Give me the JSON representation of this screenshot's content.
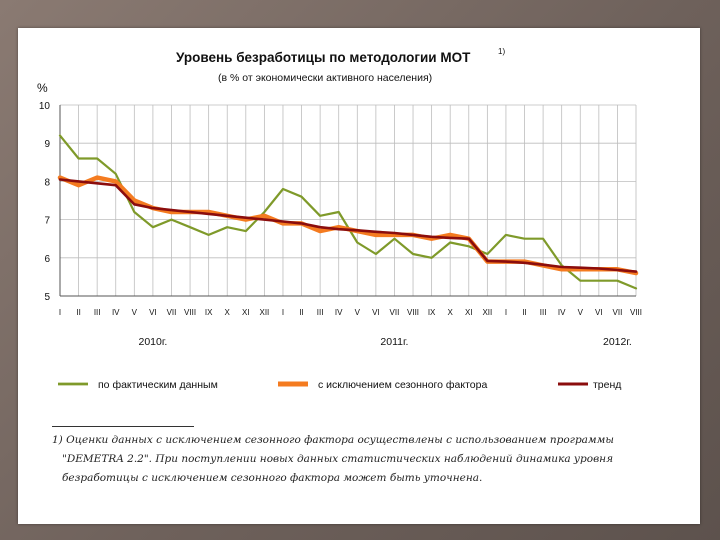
{
  "chart_data": {
    "type": "line",
    "title": "Уровень безработицы по методологии МОТ",
    "title_sup": "1)",
    "subtitle": "(в % от экономически активного населения)",
    "ylabel": "%",
    "ylim": [
      5,
      10
    ],
    "yticks": [
      5,
      6,
      7,
      8,
      9,
      10
    ],
    "grid": true,
    "legend_position": "bottom",
    "month_labels": [
      "I",
      "II",
      "III",
      "IV",
      "V",
      "VI",
      "VII",
      "VIII",
      "IX",
      "X",
      "XI",
      "XII",
      "I",
      "II",
      "III",
      "IV",
      "V",
      "VI",
      "VII",
      "VIII",
      "IX",
      "X",
      "XI",
      "XII",
      "I",
      "II",
      "III",
      "IV",
      "V",
      "VI",
      "VII",
      "VIII"
    ],
    "year_labels": [
      {
        "text": "2010г.",
        "index": 5
      },
      {
        "text": "2011г.",
        "index": 18
      },
      {
        "text": "2012г.",
        "index": 30
      }
    ],
    "series": [
      {
        "name": "по фактическим данным",
        "color": "#7f9a2a",
        "values": [
          9.2,
          8.6,
          8.6,
          8.2,
          7.2,
          6.8,
          7.0,
          6.8,
          6.6,
          6.8,
          6.7,
          7.2,
          7.8,
          7.6,
          7.1,
          7.2,
          6.4,
          6.1,
          6.5,
          6.1,
          6.0,
          6.4,
          6.3,
          6.1,
          6.6,
          6.5,
          6.5,
          5.8,
          5.4,
          5.4,
          5.4,
          5.2
        ]
      },
      {
        "name": "с исключением сезонного фактора",
        "color": "#f47b20",
        "values": [
          8.1,
          7.9,
          8.1,
          8.0,
          7.5,
          7.3,
          7.2,
          7.2,
          7.2,
          7.1,
          7.0,
          7.1,
          6.9,
          6.9,
          6.7,
          6.8,
          6.7,
          6.6,
          6.6,
          6.6,
          6.5,
          6.6,
          6.5,
          5.9,
          5.9,
          5.9,
          5.8,
          5.7,
          5.7,
          5.7,
          5.7,
          5.6
        ]
      },
      {
        "name": "тренд",
        "color": "#8b0d0d",
        "values": [
          8.05,
          8.0,
          7.95,
          7.9,
          7.4,
          7.3,
          7.25,
          7.2,
          7.15,
          7.1,
          7.05,
          7.0,
          6.95,
          6.9,
          6.8,
          6.75,
          6.72,
          6.68,
          6.65,
          6.6,
          6.55,
          6.52,
          6.5,
          5.92,
          5.9,
          5.87,
          5.82,
          5.76,
          5.74,
          5.72,
          5.68,
          5.64
        ]
      }
    ]
  },
  "footnote": {
    "line1": "1) Оценки данных с исключением сезонного фактора осуществлены с использованием программы",
    "line2": "\"DEMETRA 2.2\". При поступлении новых данных статистических наблюдений динамика уровня",
    "line3": "безработицы с исключением сезонного фактора может быть уточнена."
  }
}
